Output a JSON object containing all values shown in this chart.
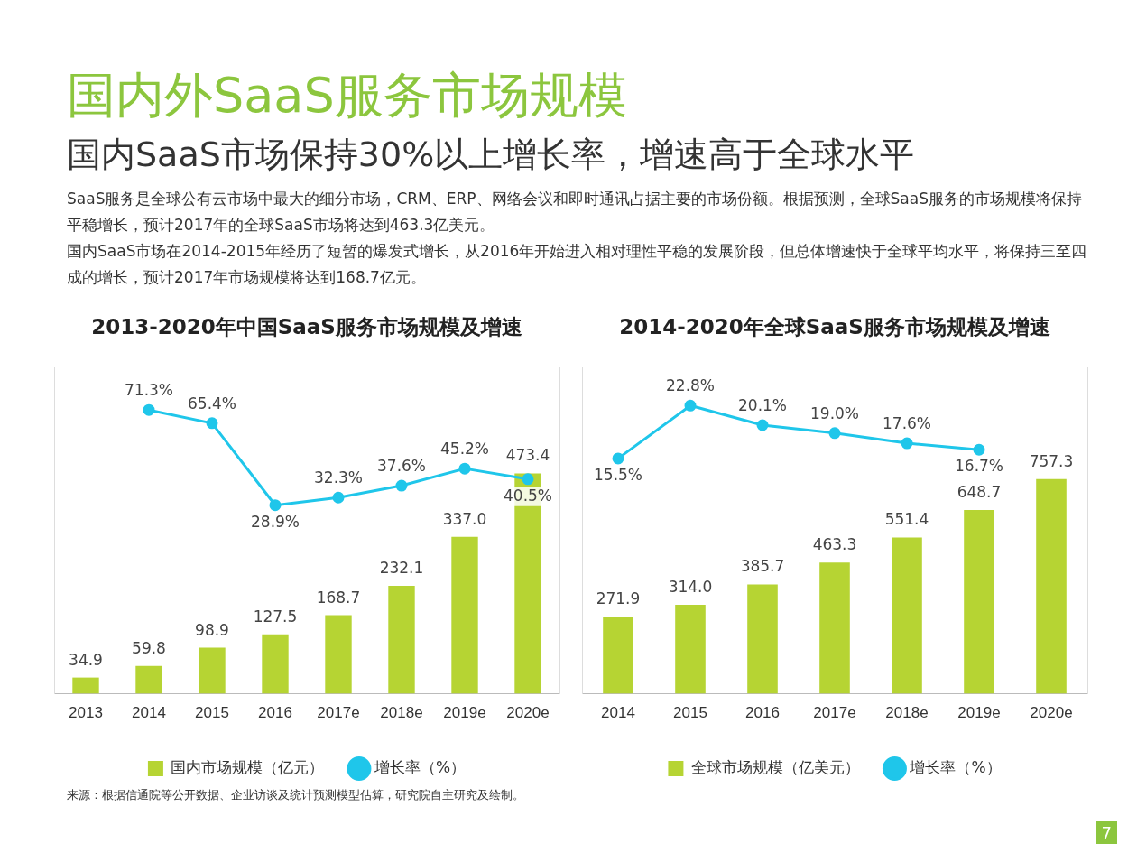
{
  "chart_data": [
    {
      "type": "other",
      "title": "国内外SaaS服务市场规模",
      "subtitle": "国内SaaS市场保持30%以上增长率，增速高于全球水平",
      "annotations": [
        "SaaS服务是全球公有云市场中最大的细分市场，CRM、ERP、网络会议和即时通讯占据主要的市场份额。根据预测，全球SaaS服务的市场规模将保持平稳增长，预计2017年的全球SaaS市场将达到463.3亿美元。",
        "国内SaaS市场在2014-2015年经历了短暂的爆发式增长，从2016年开始进入相对理性平稳的发展阶段，但总体增速快于全球平均水平，将保持三至四成的增长，预计2017年市场规模将达到168.7亿元。",
        "7"
      ]
    },
    {
      "type": "bar",
      "title": "2013-2020年中国SaaS服务市场规模及增速",
      "categories": [
        "2013",
        "2014",
        "2015",
        "2016",
        "2017e",
        "2018e",
        "2019e",
        "2020e"
      ],
      "series": [
        {
          "name": "国内市场规模（亿元）",
          "color": "#b6d433",
          "values": [
            34.9,
            59.8,
            98.9,
            127.5,
            168.7,
            232.1,
            337.0,
            473.4
          ],
          "value_labels": [
            "34.9",
            "59.8",
            "98.9",
            "127.5",
            "168.7",
            "232.1",
            "337.0",
            "473.4"
          ]
        },
        {
          "name": "增长率（%）",
          "type": "line",
          "axis": "y2",
          "color": "#1fc6ea",
          "values": [
            null,
            71.3,
            65.4,
            28.9,
            32.3,
            37.6,
            45.2,
            40.5
          ],
          "value_labels": [
            null,
            "71.3%",
            "65.4%",
            "28.9%",
            "32.3%",
            "37.6%",
            "45.2%",
            "40.5%"
          ]
        }
      ],
      "ylim": [
        0,
        700
      ],
      "y2lim": [
        -55,
        90
      ],
      "tick_labels": "x",
      "legend": "bottom",
      "marker": "circle",
      "line_style": "solid",
      "annotations": [
        "来源：根据信通院等公开数据、企业访谈及统计预测模型估算，研究院自主研究及绘制。"
      ]
    },
    {
      "type": "bar",
      "title": "2014-2020年全球SaaS服务市场规模及增速",
      "categories": [
        "2014",
        "2015",
        "2016",
        "2017e",
        "2018e",
        "2019e",
        "2020e"
      ],
      "series": [
        {
          "name": "全球市场规模（亿美元）",
          "color": "#b6d433",
          "values": [
            271.9,
            314.0,
            385.7,
            463.3,
            551.4,
            648.7,
            757.3
          ],
          "value_labels": [
            "271.9",
            "314.0",
            "385.7",
            "463.3",
            "551.4",
            "648.7",
            "757.3"
          ]
        },
        {
          "name": "增长率（%）",
          "type": "line",
          "axis": "y2",
          "color": "#1fc6ea",
          "values": [
            15.5,
            22.8,
            20.1,
            19.0,
            17.6,
            16.7,
            null
          ],
          "value_labels": [
            "15.5%",
            "22.8%",
            "20.1%",
            "19.0%",
            "17.6%",
            "16.7%",
            null
          ]
        }
      ],
      "ylim": [
        0,
        1150
      ],
      "y2lim": [
        -17,
        28
      ],
      "tick_labels": "x",
      "legend": "bottom",
      "marker": "circle",
      "line_style": "solid"
    }
  ]
}
